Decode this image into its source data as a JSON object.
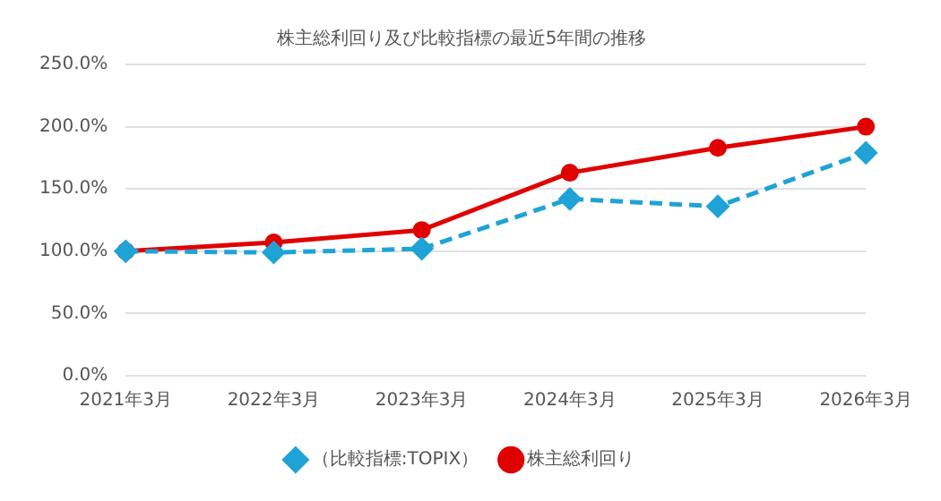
{
  "chart_data": {
    "type": "line",
    "title": "株主総利回り及び比較指標の最近5年間の推移",
    "categories": [
      "2021年3月",
      "2022年3月",
      "2023年3月",
      "2024年3月",
      "2025年3月",
      "2026年3月"
    ],
    "series": [
      {
        "name": "株主総利回り",
        "color": "#e00000",
        "values": [
          100,
          107,
          117,
          163,
          183,
          200
        ],
        "marker": "circle",
        "line_style": "solid"
      },
      {
        "name": "（比較指標:TOPIX）",
        "color": "#1fa3d6",
        "values": [
          100,
          99,
          102,
          142,
          136,
          179
        ],
        "marker": "diamond",
        "line_style": "dashed"
      }
    ],
    "ylim": [
      0,
      250
    ],
    "yticks": [
      {
        "value": 0,
        "label": "0.0%"
      },
      {
        "value": 50,
        "label": "50.0%"
      },
      {
        "value": 100,
        "label": "100.0%"
      },
      {
        "value": 150,
        "label": "150.0%"
      },
      {
        "value": 200,
        "label": "200.0%"
      },
      {
        "value": 250,
        "label": "250.0%"
      }
    ],
    "grid": "y",
    "legend": "bottom"
  }
}
